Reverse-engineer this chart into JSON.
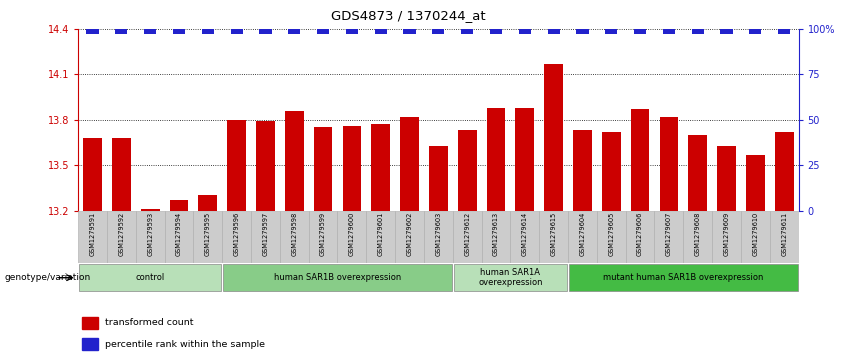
{
  "title": "GDS4873 / 1370244_at",
  "samples": [
    "GSM1279591",
    "GSM1279592",
    "GSM1279593",
    "GSM1279594",
    "GSM1279595",
    "GSM1279596",
    "GSM1279597",
    "GSM1279598",
    "GSM1279599",
    "GSM1279600",
    "GSM1279601",
    "GSM1279602",
    "GSM1279603",
    "GSM1279612",
    "GSM1279613",
    "GSM1279614",
    "GSM1279615",
    "GSM1279604",
    "GSM1279605",
    "GSM1279606",
    "GSM1279607",
    "GSM1279608",
    "GSM1279609",
    "GSM1279610",
    "GSM1279611"
  ],
  "values": [
    13.68,
    13.68,
    13.21,
    13.27,
    13.3,
    13.8,
    13.79,
    13.86,
    13.75,
    13.76,
    13.77,
    13.82,
    13.63,
    13.73,
    13.88,
    13.88,
    14.17,
    13.73,
    13.72,
    13.87,
    13.82,
    13.7,
    13.63,
    13.57,
    13.72
  ],
  "bar_color": "#cc0000",
  "percentile_color": "#2222cc",
  "ylim_min": 13.2,
  "ylim_max": 14.4,
  "yticks_left": [
    13.2,
    13.5,
    13.8,
    14.1,
    14.4
  ],
  "yticks_right_labels": [
    "0",
    "25",
    "50",
    "75",
    "100%"
  ],
  "groups": [
    {
      "label": "control",
      "start": 0,
      "end": 5,
      "color": "#b8e0b8"
    },
    {
      "label": "human SAR1B overexpression",
      "start": 5,
      "end": 13,
      "color": "#88cc88"
    },
    {
      "label": "human SAR1A\noverexpression",
      "start": 13,
      "end": 17,
      "color": "#b8e0b8"
    },
    {
      "label": "mutant human SAR1B overexpression",
      "start": 17,
      "end": 25,
      "color": "#44bb44"
    }
  ],
  "genotype_label": "genotype/variation",
  "legend_items": [
    {
      "label": "transformed count",
      "color": "#cc0000"
    },
    {
      "label": "percentile rank within the sample",
      "color": "#2222cc"
    }
  ]
}
